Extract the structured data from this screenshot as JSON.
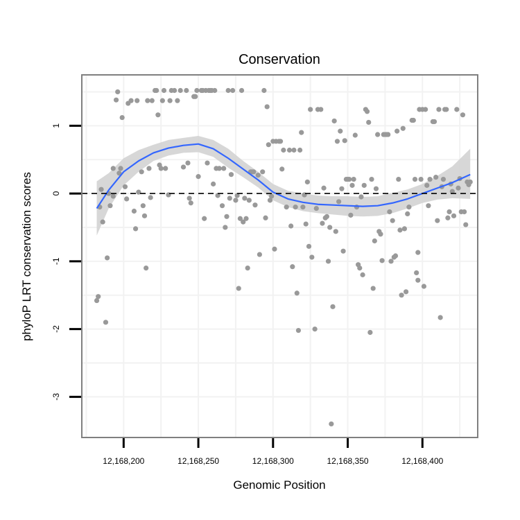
{
  "chart_data": {
    "type": "scatter",
    "title": "Conservation",
    "xlabel": "Genomic Position",
    "ylabel": "phyloP LRT conservation scores",
    "xlim": [
      12168172,
      12168437
    ],
    "ylim": [
      -3.6,
      1.75
    ],
    "x_ticks": [
      12168200,
      12168250,
      12168300,
      12168350,
      12168400
    ],
    "x_tick_labels": [
      "12,168,200",
      "12,168,250",
      "12,168,300",
      "12,168,350",
      "12,168,400"
    ],
    "y_ticks": [
      -3,
      -2,
      -1,
      0,
      1
    ],
    "y_tick_labels": [
      "-3",
      "-2",
      "-1",
      "0",
      "1"
    ],
    "reference_line_y": 0,
    "grid": true,
    "colors": {
      "points": "#999999",
      "smooth": "#3366ff",
      "ribbon": "#d3d3d3",
      "panel_border": "#7f7f7f",
      "grid_line": "#f2f2f2"
    },
    "points": [
      [
        12168182,
        -1.58
      ],
      [
        12168183,
        -1.52
      ],
      [
        12168184,
        -0.2
      ],
      [
        12168185,
        0.06
      ],
      [
        12168186,
        -0.42
      ],
      [
        12168188,
        -1.9
      ],
      [
        12168189,
        -0.95
      ],
      [
        12168190,
        0.0
      ],
      [
        12168191,
        -0.18
      ],
      [
        12168193,
        -0.04
      ],
      [
        12168193,
        0.37
      ],
      [
        12168195,
        1.38
      ],
      [
        12168196,
        1.5
      ],
      [
        12168197,
        0.3
      ],
      [
        12168198,
        0.37
      ],
      [
        12168199,
        1.12
      ],
      [
        12168201,
        0.1
      ],
      [
        12168202,
        -0.08
      ],
      [
        12168203,
        1.33
      ],
      [
        12168205,
        1.37
      ],
      [
        12168207,
        -0.26
      ],
      [
        12168208,
        -0.52
      ],
      [
        12168209,
        1.37
      ],
      [
        12168210,
        0.02
      ],
      [
        12168212,
        0.32
      ],
      [
        12168213,
        -0.18
      ],
      [
        12168214,
        -0.33
      ],
      [
        12168215,
        -1.1
      ],
      [
        12168216,
        1.37
      ],
      [
        12168217,
        0.37
      ],
      [
        12168218,
        -0.06
      ],
      [
        12168219,
        1.37
      ],
      [
        12168221,
        1.52
      ],
      [
        12168222,
        1.52
      ],
      [
        12168223,
        1.16
      ],
      [
        12168224,
        0.42
      ],
      [
        12168225,
        0.37
      ],
      [
        12168226,
        1.37
      ],
      [
        12168227,
        1.52
      ],
      [
        12168228,
        0.37
      ],
      [
        12168230,
        -0.02
      ],
      [
        12168231,
        1.37
      ],
      [
        12168232,
        1.52
      ],
      [
        12168234,
        1.52
      ],
      [
        12168236,
        1.37
      ],
      [
        12168238,
        1.52
      ],
      [
        12168240,
        0.39
      ],
      [
        12168242,
        1.52
      ],
      [
        12168243,
        0.45
      ],
      [
        12168244,
        -0.07
      ],
      [
        12168245,
        -0.14
      ],
      [
        12168247,
        1.43
      ],
      [
        12168248,
        1.43
      ],
      [
        12168249,
        1.52
      ],
      [
        12168250,
        0.25
      ],
      [
        12168252,
        1.52
      ],
      [
        12168253,
        1.52
      ],
      [
        12168254,
        -0.37
      ],
      [
        12168255,
        1.52
      ],
      [
        12168256,
        0.45
      ],
      [
        12168257,
        1.52
      ],
      [
        12168258,
        1.52
      ],
      [
        12168259,
        1.52
      ],
      [
        12168260,
        0.14
      ],
      [
        12168261,
        1.52
      ],
      [
        12168262,
        0.37
      ],
      [
        12168263,
        -0.03
      ],
      [
        12168264,
        0.37
      ],
      [
        12168266,
        -0.18
      ],
      [
        12168267,
        0.37
      ],
      [
        12168268,
        -0.5
      ],
      [
        12168269,
        -0.34
      ],
      [
        12168270,
        1.52
      ],
      [
        12168271,
        -0.07
      ],
      [
        12168272,
        0.28
      ],
      [
        12168273,
        1.52
      ],
      [
        12168275,
        -0.1
      ],
      [
        12168276,
        -0.03
      ],
      [
        12168277,
        -1.4
      ],
      [
        12168278,
        -0.37
      ],
      [
        12168279,
        1.52
      ],
      [
        12168280,
        -0.42
      ],
      [
        12168281,
        -0.07
      ],
      [
        12168282,
        -0.37
      ],
      [
        12168283,
        -1.1
      ],
      [
        12168284,
        -0.1
      ],
      [
        12168285,
        0.32
      ],
      [
        12168286,
        0.32
      ],
      [
        12168287,
        0.32
      ],
      [
        12168288,
        -0.17
      ],
      [
        12168290,
        0.27
      ],
      [
        12168291,
        -0.9
      ],
      [
        12168293,
        0.32
      ],
      [
        12168294,
        1.52
      ],
      [
        12168295,
        -0.36
      ],
      [
        12168296,
        1.28
      ],
      [
        12168297,
        0.72
      ],
      [
        12168298,
        -0.1
      ],
      [
        12168299,
        -0.04
      ],
      [
        12168300,
        0.77
      ],
      [
        12168301,
        -0.82
      ],
      [
        12168302,
        0.77
      ],
      [
        12168304,
        0.77
      ],
      [
        12168305,
        0.77
      ],
      [
        12168306,
        0.36
      ],
      [
        12168307,
        0.64
      ],
      [
        12168309,
        -0.2
      ],
      [
        12168311,
        0.64
      ],
      [
        12168312,
        -0.48
      ],
      [
        12168313,
        -1.08
      ],
      [
        12168314,
        0.64
      ],
      [
        12168315,
        -0.2
      ],
      [
        12168316,
        -1.47
      ],
      [
        12168317,
        -2.02
      ],
      [
        12168318,
        0.64
      ],
      [
        12168319,
        0.9
      ],
      [
        12168320,
        -0.2
      ],
      [
        12168321,
        -0.02
      ],
      [
        12168322,
        -0.45
      ],
      [
        12168323,
        0.17
      ],
      [
        12168324,
        -0.78
      ],
      [
        12168325,
        1.24
      ],
      [
        12168326,
        -0.94
      ],
      [
        12168328,
        -2.0
      ],
      [
        12168329,
        -0.22
      ],
      [
        12168330,
        1.24
      ],
      [
        12168332,
        1.24
      ],
      [
        12168333,
        -0.44
      ],
      [
        12168334,
        0.08
      ],
      [
        12168335,
        -0.36
      ],
      [
        12168336,
        -0.34
      ],
      [
        12168337,
        -1.0
      ],
      [
        12168338,
        -0.5
      ],
      [
        12168339,
        -3.4
      ],
      [
        12168340,
        -1.67
      ],
      [
        12168341,
        1.07
      ],
      [
        12168342,
        -0.56
      ],
      [
        12168343,
        0.77
      ],
      [
        12168344,
        -0.12
      ],
      [
        12168345,
        0.92
      ],
      [
        12168346,
        0.07
      ],
      [
        12168347,
        -0.85
      ],
      [
        12168348,
        0.78
      ],
      [
        12168349,
        0.21
      ],
      [
        12168350,
        0.21
      ],
      [
        12168351,
        0.21
      ],
      [
        12168352,
        -0.32
      ],
      [
        12168353,
        0.12
      ],
      [
        12168354,
        0.21
      ],
      [
        12168355,
        0.86
      ],
      [
        12168356,
        -0.2
      ],
      [
        12168357,
        -1.05
      ],
      [
        12168358,
        -1.1
      ],
      [
        12168359,
        -0.05
      ],
      [
        12168360,
        -1.2
      ],
      [
        12168361,
        0.12
      ],
      [
        12168362,
        1.24
      ],
      [
        12168363,
        1.21
      ],
      [
        12168364,
        1.05
      ],
      [
        12168365,
        -2.05
      ],
      [
        12168366,
        0.21
      ],
      [
        12168367,
        -1.4
      ],
      [
        12168368,
        -0.7
      ],
      [
        12168369,
        0.07
      ],
      [
        12168370,
        0.87
      ],
      [
        12168371,
        -0.56
      ],
      [
        12168372,
        -0.6
      ],
      [
        12168373,
        -0.99
      ],
      [
        12168374,
        0.87
      ],
      [
        12168375,
        0.87
      ],
      [
        12168376,
        0.87
      ],
      [
        12168377,
        0.87
      ],
      [
        12168378,
        -0.27
      ],
      [
        12168379,
        -1.0
      ],
      [
        12168380,
        -0.4
      ],
      [
        12168381,
        -0.94
      ],
      [
        12168382,
        -0.92
      ],
      [
        12168383,
        0.92
      ],
      [
        12168384,
        0.21
      ],
      [
        12168385,
        -0.54
      ],
      [
        12168386,
        -1.5
      ],
      [
        12168387,
        0.96
      ],
      [
        12168388,
        -0.52
      ],
      [
        12168389,
        -1.45
      ],
      [
        12168390,
        -0.3
      ],
      [
        12168391,
        -0.2
      ],
      [
        12168393,
        1.08
      ],
      [
        12168394,
        1.08
      ],
      [
        12168395,
        0.21
      ],
      [
        12168396,
        -1.17
      ],
      [
        12168397,
        -1.28
      ],
      [
        12168397,
        -0.87
      ],
      [
        12168398,
        1.24
      ],
      [
        12168399,
        0.21
      ],
      [
        12168400,
        1.24
      ],
      [
        12168401,
        -1.37
      ],
      [
        12168402,
        1.24
      ],
      [
        12168403,
        0.12
      ],
      [
        12168404,
        -0.18
      ],
      [
        12168405,
        0.21
      ],
      [
        12168407,
        1.06
      ],
      [
        12168408,
        1.06
      ],
      [
        12168409,
        0.24
      ],
      [
        12168410,
        -0.4
      ],
      [
        12168411,
        1.24
      ],
      [
        12168412,
        -1.83
      ],
      [
        12168413,
        0.1
      ],
      [
        12168414,
        0.21
      ],
      [
        12168415,
        1.24
      ],
      [
        12168416,
        1.24
      ],
      [
        12168417,
        -0.36
      ],
      [
        12168418,
        -0.27
      ],
      [
        12168419,
        0.14
      ],
      [
        12168420,
        0.03
      ],
      [
        12168421,
        -0.33
      ],
      [
        12168423,
        1.24
      ],
      [
        12168424,
        0.08
      ],
      [
        12168425,
        0.22
      ],
      [
        12168426,
        -0.27
      ],
      [
        12168427,
        1.16
      ],
      [
        12168428,
        -0.27
      ],
      [
        12168429,
        -0.46
      ],
      [
        12168430,
        0.17
      ],
      [
        12168431,
        0.13
      ],
      [
        12168432,
        0.17
      ]
    ],
    "smooth": {
      "x": [
        12168182,
        12168190,
        12168200,
        12168210,
        12168220,
        12168230,
        12168240,
        12168250,
        12168260,
        12168270,
        12168280,
        12168290,
        12168300,
        12168310,
        12168320,
        12168330,
        12168340,
        12168350,
        12168360,
        12168370,
        12168380,
        12168390,
        12168400,
        12168410,
        12168420,
        12168432
      ],
      "y": [
        -0.22,
        0.05,
        0.32,
        0.48,
        0.6,
        0.67,
        0.71,
        0.73,
        0.66,
        0.52,
        0.36,
        0.2,
        0.02,
        -0.08,
        -0.13,
        -0.16,
        -0.17,
        -0.18,
        -0.19,
        -0.18,
        -0.14,
        -0.08,
        0.0,
        0.08,
        0.16,
        0.28
      ],
      "lower": [
        -0.62,
        -0.22,
        0.12,
        0.32,
        0.48,
        0.56,
        0.6,
        0.61,
        0.54,
        0.38,
        0.24,
        0.09,
        -0.1,
        -0.2,
        -0.26,
        -0.29,
        -0.31,
        -0.33,
        -0.34,
        -0.33,
        -0.29,
        -0.22,
        -0.14,
        -0.09,
        -0.07,
        -0.08
      ],
      "upper": [
        0.18,
        0.3,
        0.52,
        0.64,
        0.72,
        0.79,
        0.82,
        0.85,
        0.79,
        0.66,
        0.48,
        0.32,
        0.14,
        0.04,
        0.0,
        -0.03,
        -0.04,
        -0.04,
        -0.05,
        -0.04,
        0.01,
        0.06,
        0.14,
        0.26,
        0.4,
        0.66
      ]
    }
  }
}
